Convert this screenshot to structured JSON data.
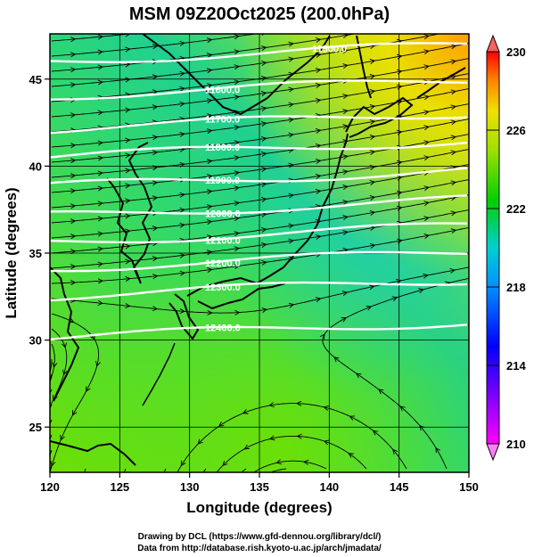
{
  "title": "MSM 09Z20Oct2025 (200.0hPa)",
  "axes": {
    "xlabel": "Longitude (degrees)",
    "ylabel": "Latitude  (degrees)",
    "xticks": [
      "120",
      "125",
      "130",
      "135",
      "140",
      "145",
      "150"
    ],
    "yticks": [
      "25",
      "30",
      "35",
      "40",
      "45"
    ],
    "xlim": [
      120,
      150
    ],
    "ylim": [
      22.4,
      47.6
    ]
  },
  "colorbar": {
    "ticks": [
      "210",
      "214",
      "218",
      "222",
      "226",
      "230"
    ],
    "range": [
      210,
      230
    ]
  },
  "contours": {
    "color": "#ffffff",
    "levels": [
      {
        "label": "11500.0",
        "lat": 46.5
      },
      {
        "label": "11600.0",
        "lat": 44.5
      },
      {
        "label": "11700.0",
        "lat": 42.6
      },
      {
        "label": "11800.0",
        "lat": 41.0
      },
      {
        "label": "11900.0",
        "lat": 39.3
      },
      {
        "label": "12000.0",
        "lat": 37.6
      },
      {
        "label": "12100.0",
        "lat": 36.1
      },
      {
        "label": "12200.0",
        "lat": 34.6
      },
      {
        "label": "12300.0",
        "lat": 33.0
      },
      {
        "label": "12400.0",
        "lat": 30.6
      }
    ]
  },
  "credits": {
    "line1": "Drawing by DCL (https://www.gfd-dennou.org/library/dcl/)",
    "line2": "Data from http://database.rish.kyoto-u.ac.jp/arch/jmadata/"
  },
  "colors": {
    "low": "#ff00ff",
    "mid_low": "#0000ff",
    "mid": "#00d0c0",
    "high": "#00cc00",
    "top": "#ff0000"
  }
}
